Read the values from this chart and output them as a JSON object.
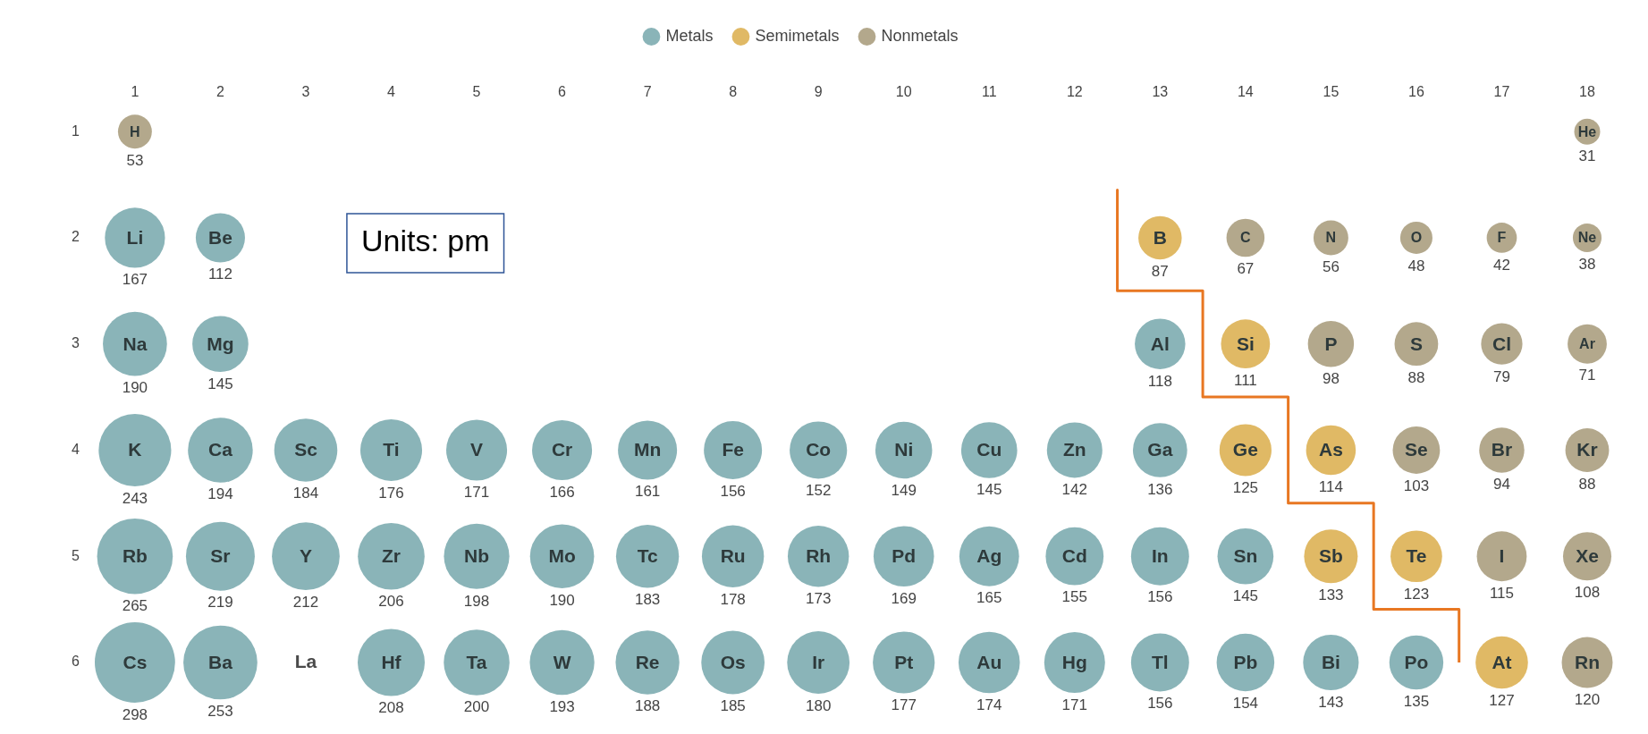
{
  "chart_data": {
    "type": "bubble",
    "xlim": [
      1,
      18
    ],
    "xticks": [
      1,
      2,
      3,
      4,
      5,
      6,
      7,
      8,
      9,
      10,
      11,
      12,
      13,
      14,
      15,
      16,
      17,
      18
    ],
    "ylim": [
      6,
      1
    ],
    "yticks": [
      1,
      2,
      3,
      4,
      5,
      6
    ],
    "grid": false,
    "legend": "top",
    "series": [
      {
        "name": "Metals",
        "color": "#8ab4b8",
        "x": [
          1,
          2,
          1,
          2,
          13,
          1,
          2,
          3,
          4,
          5,
          6,
          7,
          8,
          9,
          10,
          11,
          12,
          13,
          1,
          2,
          3,
          4,
          5,
          6,
          7,
          8,
          9,
          10,
          11,
          12,
          13,
          14,
          1,
          2,
          4,
          5,
          6,
          7,
          8,
          9,
          10,
          11,
          12,
          13,
          14,
          15,
          16
        ],
        "values": [
          2,
          2,
          3,
          3,
          3,
          4,
          4,
          4,
          4,
          4,
          4,
          4,
          4,
          4,
          4,
          4,
          4,
          4,
          5,
          5,
          5,
          5,
          5,
          5,
          5,
          5,
          5,
          5,
          5,
          5,
          5,
          5,
          6,
          6,
          6,
          6,
          6,
          6,
          6,
          6,
          6,
          6,
          6,
          6,
          6,
          6,
          6
        ],
        "sizes": [
          167,
          112,
          190,
          145,
          118,
          243,
          194,
          184,
          176,
          171,
          166,
          161,
          156,
          152,
          149,
          145,
          142,
          136,
          265,
          219,
          212,
          206,
          198,
          190,
          183,
          178,
          173,
          169,
          165,
          155,
          156,
          145,
          298,
          253,
          208,
          200,
          193,
          188,
          185,
          180,
          177,
          174,
          171,
          156,
          154,
          143,
          135
        ],
        "value_labels": [
          "167",
          "112",
          "190",
          "145",
          "118",
          "243",
          "194",
          "184",
          "176",
          "171",
          "166",
          "161",
          "156",
          "152",
          "149",
          "145",
          "142",
          "136",
          "265",
          "219",
          "212",
          "206",
          "198",
          "190",
          "183",
          "178",
          "173",
          "169",
          "165",
          "155",
          "156",
          "145",
          "298",
          "253",
          "208",
          "200",
          "193",
          "188",
          "185",
          "180",
          "177",
          "174",
          "171",
          "156",
          "154",
          "143",
          "135"
        ]
      },
      {
        "name": "Semimetals",
        "color": "#e0b965",
        "x": [
          13,
          14,
          14,
          15,
          15,
          16,
          17
        ],
        "values": [
          2,
          3,
          4,
          4,
          5,
          5,
          6
        ],
        "sizes": [
          87,
          111,
          125,
          114,
          133,
          123,
          127
        ],
        "value_labels": [
          "87",
          "111",
          "125",
          "114",
          "133",
          "123",
          "127"
        ]
      },
      {
        "name": "Nonmetals",
        "color": "#b3a88c",
        "x": [
          1,
          18,
          14,
          15,
          16,
          17,
          18,
          15,
          16,
          17,
          18,
          16,
          17,
          18,
          17,
          18,
          18
        ],
        "values": [
          1,
          1,
          2,
          2,
          2,
          2,
          2,
          3,
          3,
          3,
          3,
          4,
          4,
          4,
          5,
          5,
          6
        ],
        "sizes": [
          53,
          31,
          67,
          56,
          48,
          42,
          38,
          98,
          88,
          79,
          71,
          103,
          94,
          88,
          115,
          108,
          120
        ],
        "value_labels": [
          "53",
          "31",
          "67",
          "56",
          "48",
          "42",
          "38",
          "98",
          "88",
          "79",
          "71",
          "103",
          "94",
          "88",
          "115",
          "108",
          "120"
        ]
      },
      {
        "type": "line",
        "color": "#e87722",
        "x": [
          12.5,
          12.5,
          13.5,
          13.5,
          14.5,
          14.5,
          15.5,
          15.5,
          16.5,
          16.5
        ],
        "values": [
          1.55,
          2.5,
          2.5,
          3.5,
          3.5,
          4.5,
          4.5,
          5.5,
          5.5,
          6
        ]
      }
    ],
    "annotations": [
      "Units: pm",
      {
        "text": "H",
        "x": 1,
        "y": 1
      },
      {
        "text": "He",
        "x": 18,
        "y": 1
      },
      {
        "text": "Li",
        "x": 1,
        "y": 2
      },
      {
        "text": "Be",
        "x": 2,
        "y": 2
      },
      {
        "text": "B",
        "x": 13,
        "y": 2
      },
      {
        "text": "C",
        "x": 14,
        "y": 2
      },
      {
        "text": "N",
        "x": 15,
        "y": 2
      },
      {
        "text": "O",
        "x": 16,
        "y": 2
      },
      {
        "text": "F",
        "x": 17,
        "y": 2
      },
      {
        "text": "Ne",
        "x": 18,
        "y": 2
      },
      {
        "text": "Na",
        "x": 1,
        "y": 3
      },
      {
        "text": "Mg",
        "x": 2,
        "y": 3
      },
      {
        "text": "Al",
        "x": 13,
        "y": 3
      },
      {
        "text": "Si",
        "x": 14,
        "y": 3
      },
      {
        "text": "P",
        "x": 15,
        "y": 3
      },
      {
        "text": "S",
        "x": 16,
        "y": 3
      },
      {
        "text": "Cl",
        "x": 17,
        "y": 3
      },
      {
        "text": "Ar",
        "x": 18,
        "y": 3
      },
      {
        "text": "K",
        "x": 1,
        "y": 4
      },
      {
        "text": "Ca",
        "x": 2,
        "y": 4
      },
      {
        "text": "Sc",
        "x": 3,
        "y": 4
      },
      {
        "text": "Ti",
        "x": 4,
        "y": 4
      },
      {
        "text": "V",
        "x": 5,
        "y": 4
      },
      {
        "text": "Cr",
        "x": 6,
        "y": 4
      },
      {
        "text": "Mn",
        "x": 7,
        "y": 4
      },
      {
        "text": "Fe",
        "x": 8,
        "y": 4
      },
      {
        "text": "Co",
        "x": 9,
        "y": 4
      },
      {
        "text": "Ni",
        "x": 10,
        "y": 4
      },
      {
        "text": "Cu",
        "x": 11,
        "y": 4
      },
      {
        "text": "Zn",
        "x": 12,
        "y": 4
      },
      {
        "text": "Ga",
        "x": 13,
        "y": 4
      },
      {
        "text": "Ge",
        "x": 14,
        "y": 4
      },
      {
        "text": "As",
        "x": 15,
        "y": 4
      },
      {
        "text": "Se",
        "x": 16,
        "y": 4
      },
      {
        "text": "Br",
        "x": 17,
        "y": 4
      },
      {
        "text": "Kr",
        "x": 18,
        "y": 4
      },
      {
        "text": "Rb",
        "x": 1,
        "y": 5
      },
      {
        "text": "Sr",
        "x": 2,
        "y": 5
      },
      {
        "text": "Y",
        "x": 3,
        "y": 5
      },
      {
        "text": "Zr",
        "x": 4,
        "y": 5
      },
      {
        "text": "Nb",
        "x": 5,
        "y": 5
      },
      {
        "text": "Mo",
        "x": 6,
        "y": 5
      },
      {
        "text": "Tc",
        "x": 7,
        "y": 5
      },
      {
        "text": "Ru",
        "x": 8,
        "y": 5
      },
      {
        "text": "Rh",
        "x": 9,
        "y": 5
      },
      {
        "text": "Pd",
        "x": 10,
        "y": 5
      },
      {
        "text": "Ag",
        "x": 11,
        "y": 5
      },
      {
        "text": "Cd",
        "x": 12,
        "y": 5
      },
      {
        "text": "In",
        "x": 13,
        "y": 5
      },
      {
        "text": "Sn",
        "x": 14,
        "y": 5
      },
      {
        "text": "Sb",
        "x": 15,
        "y": 5
      },
      {
        "text": "Te",
        "x": 16,
        "y": 5
      },
      {
        "text": "I",
        "x": 17,
        "y": 5
      },
      {
        "text": "Xe",
        "x": 18,
        "y": 5
      },
      {
        "text": "Cs",
        "x": 1,
        "y": 6
      },
      {
        "text": "Ba",
        "x": 2,
        "y": 6
      },
      "La",
      {
        "text": "Hf",
        "x": 4,
        "y": 6
      },
      {
        "text": "Ta",
        "x": 5,
        "y": 6
      },
      {
        "text": "W",
        "x": 6,
        "y": 6
      },
      {
        "text": "Re",
        "x": 7,
        "y": 6
      },
      {
        "text": "Os",
        "x": 8,
        "y": 6
      },
      {
        "text": "Ir",
        "x": 9,
        "y": 6
      },
      {
        "text": "Pt",
        "x": 10,
        "y": 6
      },
      {
        "text": "Au",
        "x": 11,
        "y": 6
      },
      {
        "text": "Hg",
        "x": 12,
        "y": 6
      },
      {
        "text": "Tl",
        "x": 13,
        "y": 6
      },
      {
        "text": "Pb",
        "x": 14,
        "y": 6
      },
      {
        "text": "Bi",
        "x": 15,
        "y": 6
      },
      {
        "text": "Po",
        "x": 16,
        "y": 6
      },
      {
        "text": "At",
        "x": 17,
        "y": 6
      },
      {
        "text": "Rn",
        "x": 18,
        "y": 6
      }
    ]
  }
}
